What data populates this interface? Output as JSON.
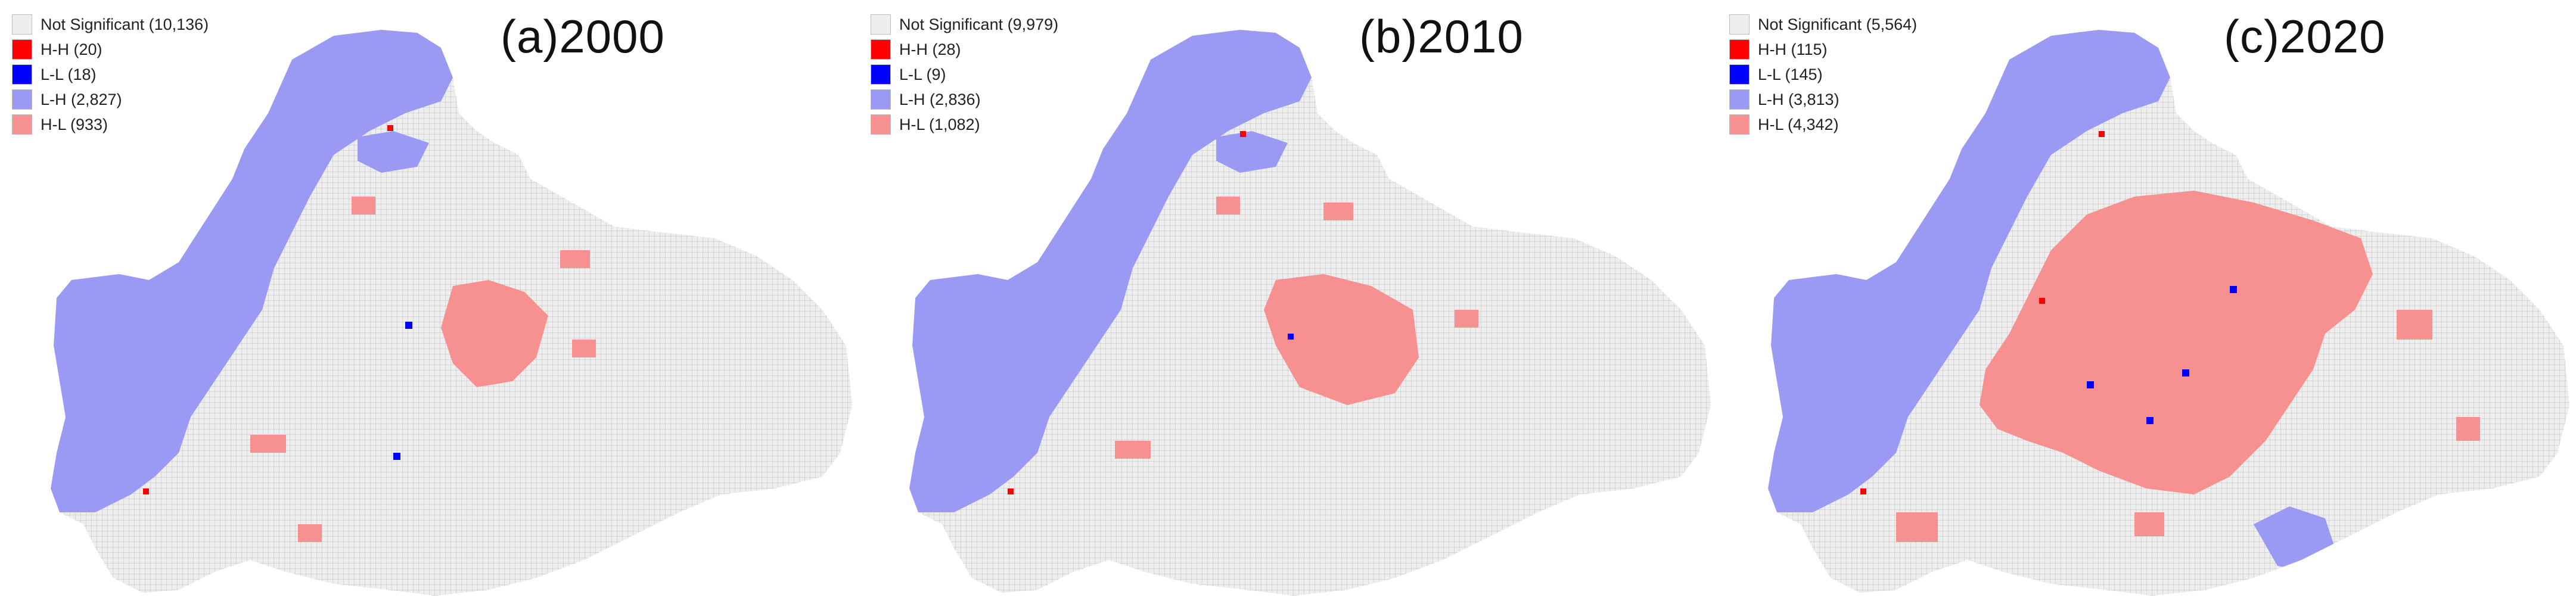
{
  "colors": {
    "not_significant": "#eeeeee",
    "hh": "#ff0000",
    "ll": "#0000ff",
    "lh": "#9a9af5",
    "hl": "#f79090",
    "grid": "#bdbdbd"
  },
  "panels": [
    {
      "title": "(a)2000",
      "legend": [
        {
          "label": "Not Significant (10,136)",
          "color": "#eeeeee"
        },
        {
          "label": "H-H (20)",
          "color": "#ff0000"
        },
        {
          "label": "L-L (18)",
          "color": "#0000ff"
        },
        {
          "label": "L-H (2,827)",
          "color": "#9a9af5"
        },
        {
          "label": "H-L (933)",
          "color": "#f79090"
        }
      ]
    },
    {
      "title": "(b)2010",
      "legend": [
        {
          "label": "Not Significant (9,979)",
          "color": "#eeeeee"
        },
        {
          "label": "H-H (28)",
          "color": "#ff0000"
        },
        {
          "label": "L-L (9)",
          "color": "#0000ff"
        },
        {
          "label": "L-H (2,836)",
          "color": "#9a9af5"
        },
        {
          "label": "H-L (1,082)",
          "color": "#f79090"
        }
      ]
    },
    {
      "title": "(c)2020",
      "legend": [
        {
          "label": "Not Significant (5,564)",
          "color": "#eeeeee"
        },
        {
          "label": "H-H (115)",
          "color": "#ff0000"
        },
        {
          "label": "L-L (145)",
          "color": "#0000ff"
        },
        {
          "label": "L-H (3,813)",
          "color": "#9a9af5"
        },
        {
          "label": "H-L (4,342)",
          "color": "#f79090"
        }
      ]
    }
  ]
}
